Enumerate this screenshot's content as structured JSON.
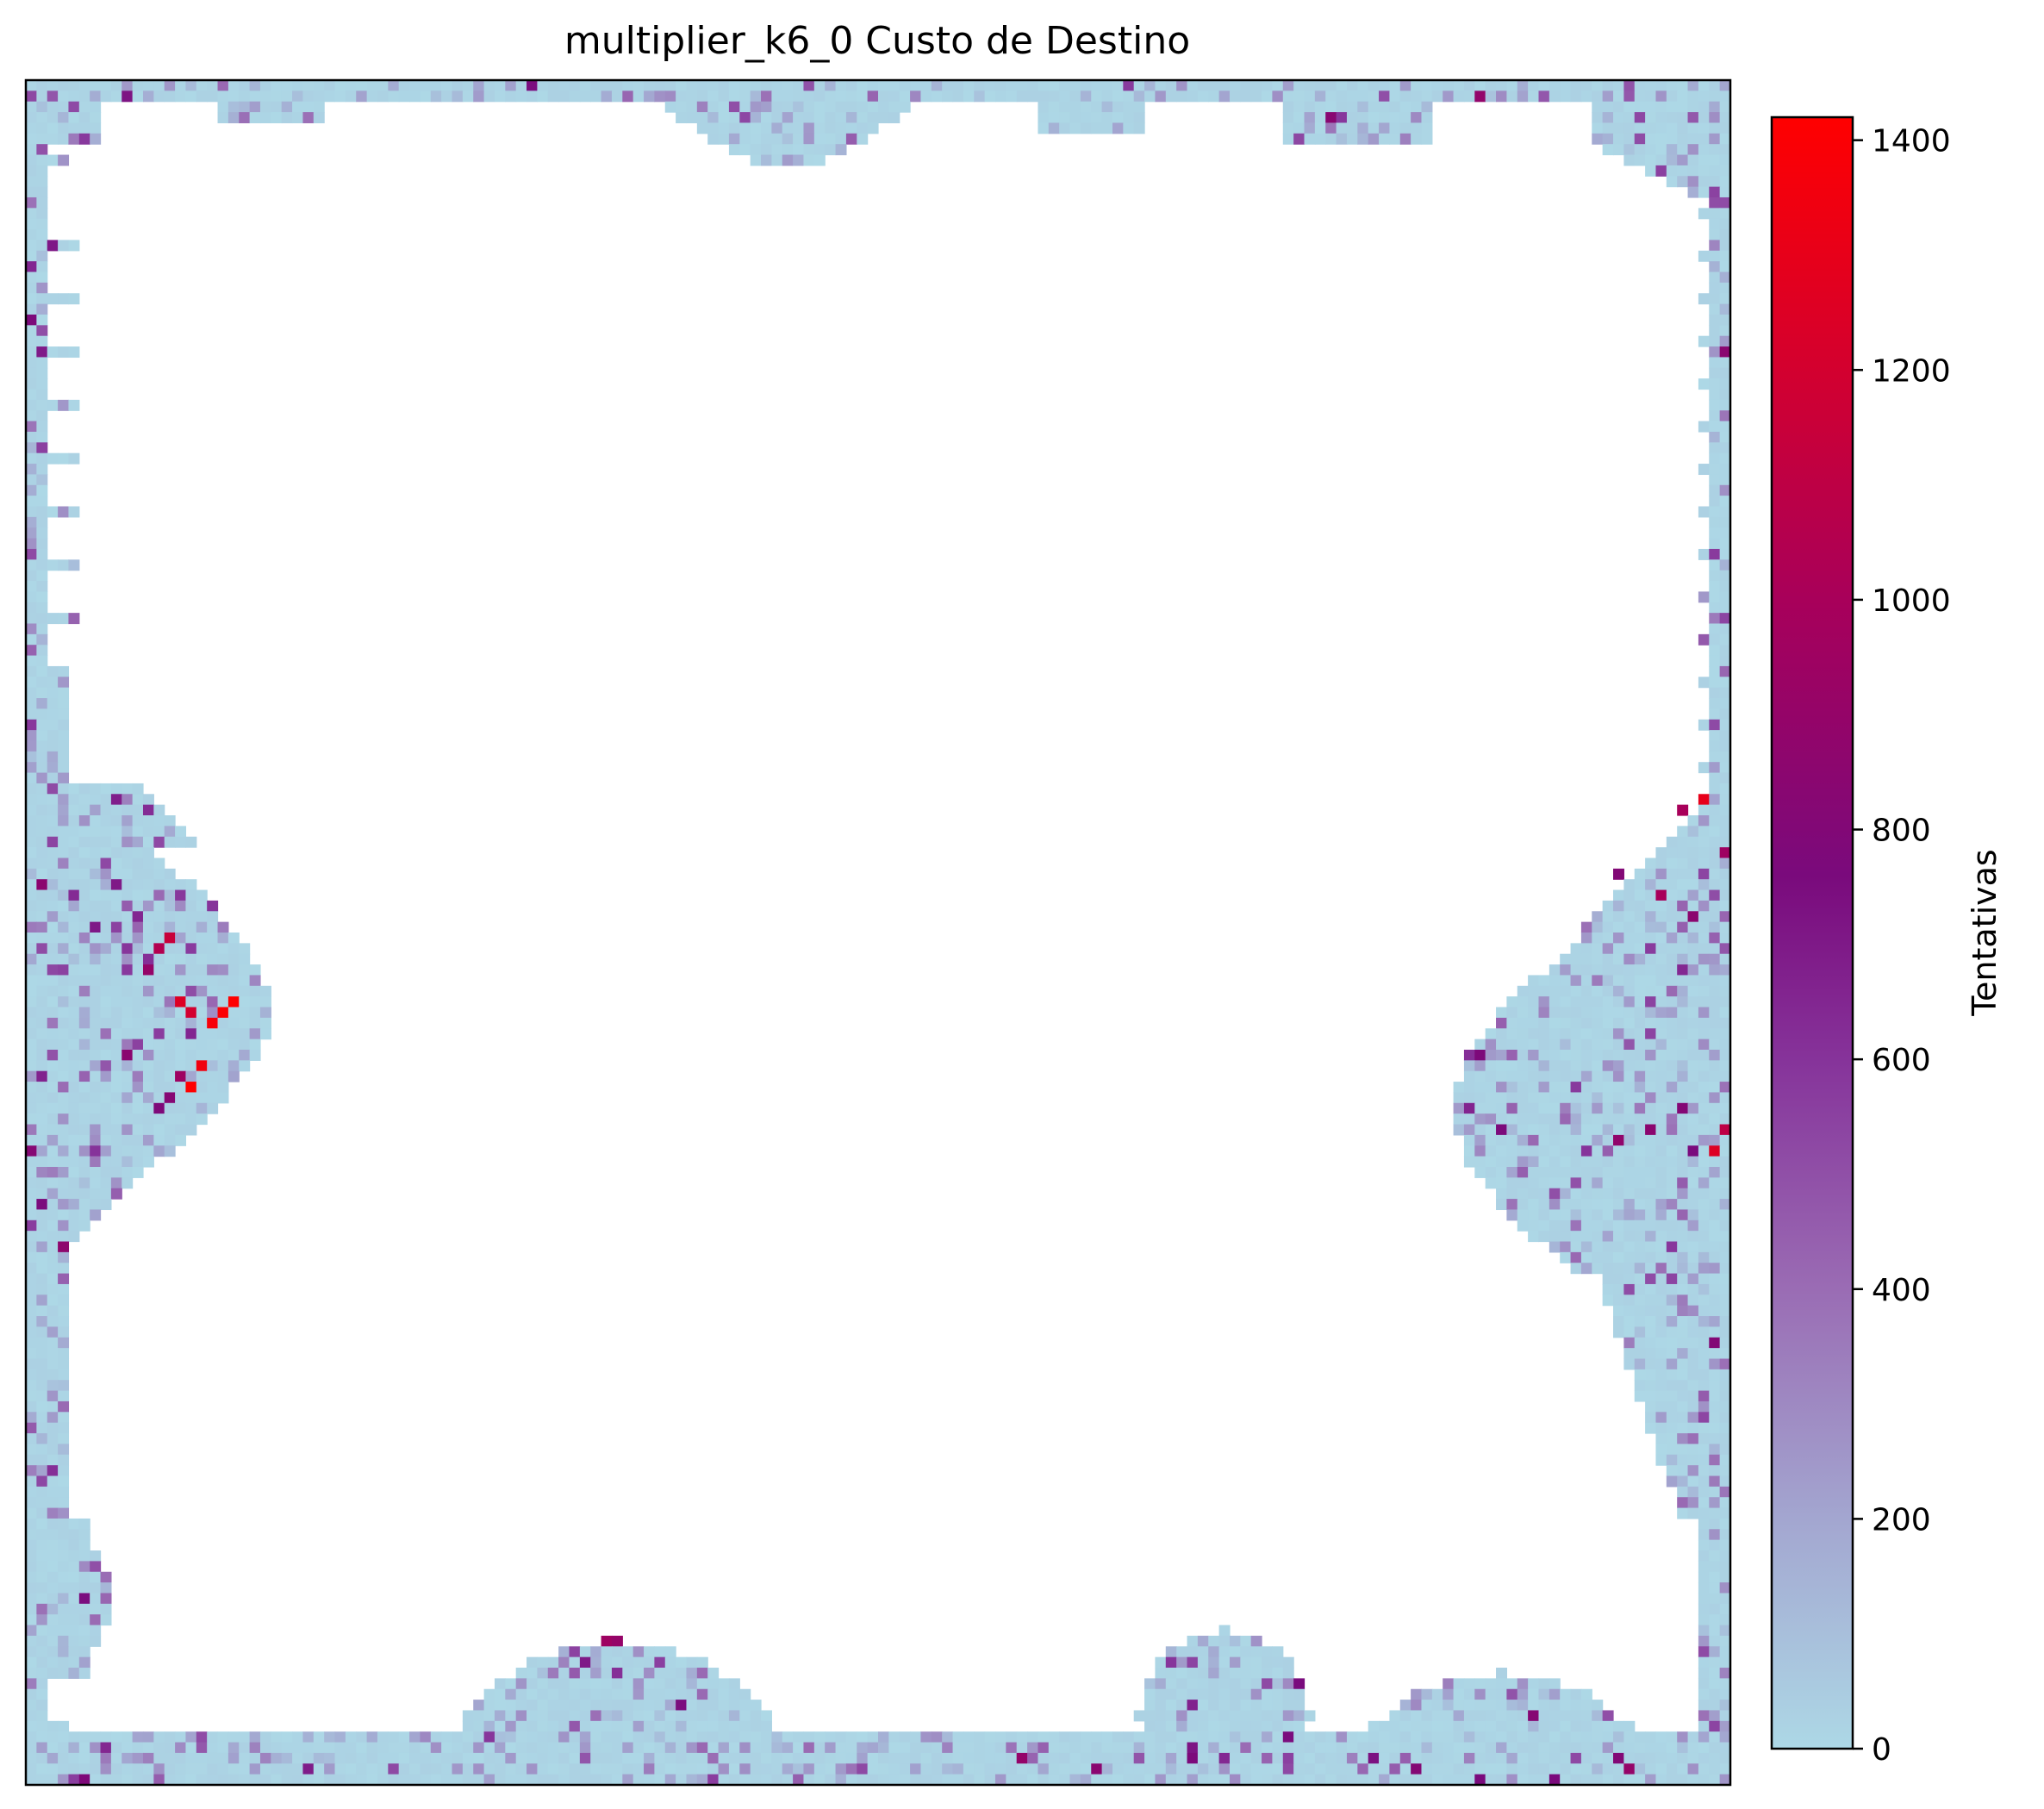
{
  "chart_data": {
    "type": "heatmap",
    "title": "multiplier_k6_0 Custo de Destino",
    "xlabel": "",
    "ylabel": "",
    "axes_ticks": "none",
    "colorbar": {
      "label": "Tentativas",
      "vmin": 0,
      "vmax": 1420,
      "ticks": [
        0,
        200,
        400,
        600,
        800,
        1000,
        1200,
        1400
      ],
      "tick_labels": [
        "0",
        "200",
        "400",
        "600",
        "800",
        "1000",
        "1200",
        "1400"
      ],
      "stops": [
        {
          "value": 0,
          "color": "#add8e6"
        },
        {
          "value": 200,
          "color": "#a3a6d0"
        },
        {
          "value": 400,
          "color": "#9a6cb4"
        },
        {
          "value": 600,
          "color": "#86339a"
        },
        {
          "value": 760,
          "color": "#7a0a7c"
        },
        {
          "value": 1000,
          "color": "#a8005a"
        },
        {
          "value": 1200,
          "color": "#d3002f"
        },
        {
          "value": 1420,
          "color": "#ff0000"
        }
      ]
    },
    "grid_size": [
      160,
      160
    ],
    "empty_value_color": "#ffffff",
    "regions": [
      {
        "name": "left-band",
        "approx_value": 40
      },
      {
        "name": "right-band",
        "approx_value": 40
      },
      {
        "name": "top-band",
        "approx_value": 30
      },
      {
        "name": "bottom-mounds",
        "approx_value": 60
      }
    ],
    "hotspots": [
      {
        "col": 19,
        "row": 86,
        "value": 1420
      },
      {
        "col": 18,
        "row": 87,
        "value": 1400
      },
      {
        "col": 17,
        "row": 88,
        "value": 1380
      },
      {
        "col": 16,
        "row": 92,
        "value": 1350
      },
      {
        "col": 15,
        "row": 94,
        "value": 1420
      },
      {
        "col": 13,
        "row": 80,
        "value": 1150
      },
      {
        "col": 12,
        "row": 81,
        "value": 1050
      },
      {
        "col": 14,
        "row": 86,
        "value": 1250
      },
      {
        "col": 15,
        "row": 87,
        "value": 1200
      },
      {
        "col": 14,
        "row": 93,
        "value": 950
      },
      {
        "col": 13,
        "row": 95,
        "value": 820
      },
      {
        "col": 12,
        "row": 96,
        "value": 780
      },
      {
        "col": 8,
        "row": 75,
        "value": 700
      },
      {
        "col": 10,
        "row": 78,
        "value": 650
      },
      {
        "col": 11,
        "row": 83,
        "value": 900
      },
      {
        "col": 6,
        "row": 100,
        "value": 600
      },
      {
        "col": 1,
        "row": 75,
        "value": 850
      },
      {
        "col": 0,
        "row": 100,
        "value": 820
      },
      {
        "col": 157,
        "row": 67,
        "value": 1300
      },
      {
        "col": 155,
        "row": 68,
        "value": 1000
      },
      {
        "col": 153,
        "row": 76,
        "value": 1000
      },
      {
        "col": 156,
        "row": 78,
        "value": 850
      },
      {
        "col": 159,
        "row": 98,
        "value": 1100
      },
      {
        "col": 158,
        "row": 100,
        "value": 1250
      },
      {
        "col": 159,
        "row": 72,
        "value": 950
      },
      {
        "col": 149,
        "row": 74,
        "value": 800
      },
      {
        "col": 152,
        "row": 98,
        "value": 850
      },
      {
        "col": 54,
        "row": 146,
        "value": 950
      },
      {
        "col": 55,
        "row": 146,
        "value": 900
      },
      {
        "col": 52,
        "row": 148,
        "value": 700
      },
      {
        "col": 61,
        "row": 152,
        "value": 750
      },
      {
        "col": 150,
        "row": 158,
        "value": 900
      },
      {
        "col": 149,
        "row": 157,
        "value": 800
      }
    ]
  }
}
